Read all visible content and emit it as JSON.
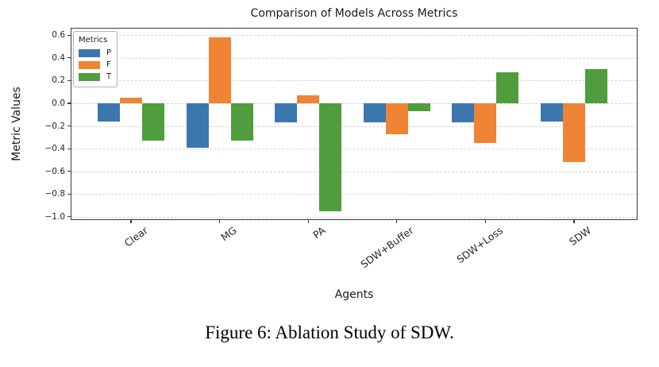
{
  "figure": {
    "caption": "Figure 6: Ablation Study of SDW."
  },
  "chart_data": {
    "type": "bar",
    "title": "Comparison of Models Across Metrics",
    "xlabel": "Agents",
    "ylabel": "Metric Values",
    "categories": [
      "Clear",
      "MG",
      "PA",
      "SDW+Buffer",
      "SDW+Loss",
      "SDW"
    ],
    "series": [
      {
        "name": "P",
        "color": "#3b76af",
        "values": [
          -0.16,
          -0.39,
          -0.17,
          -0.17,
          -0.17,
          -0.16
        ]
      },
      {
        "name": "F",
        "color": "#ee8434",
        "values": [
          0.05,
          0.58,
          0.07,
          -0.27,
          -0.35,
          -0.52
        ]
      },
      {
        "name": "T",
        "color": "#4f9d3c",
        "values": [
          -0.33,
          -0.33,
          -0.95,
          -0.07,
          0.27,
          0.3
        ]
      }
    ],
    "legend": {
      "title": "Metrics",
      "position": "upper left"
    },
    "yticks": [
      0.6,
      0.4,
      0.2,
      0.0,
      -0.2,
      -0.4,
      -0.6,
      -0.8,
      -1.0
    ],
    "ylim": [
      -1.03,
      0.665
    ],
    "grid": "horizontal-dashed"
  }
}
